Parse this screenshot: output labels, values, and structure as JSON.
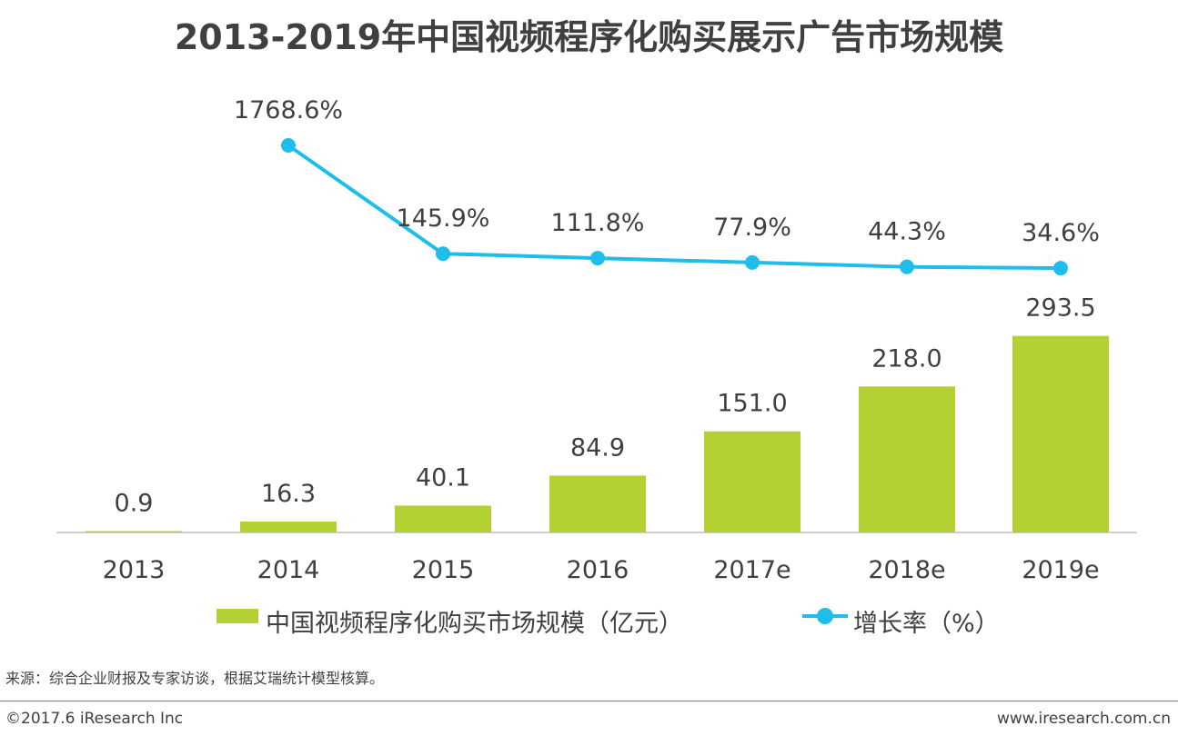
{
  "title": "2013-2019年中国视频程序化购买展示广告市场规模",
  "chart_data": {
    "type": "bar+line",
    "categories": [
      "2013",
      "2014",
      "2015",
      "2016",
      "2017e",
      "2018e",
      "2019e"
    ],
    "series": [
      {
        "name": "中国视频程序化购买市场规模（亿元）",
        "type": "bar",
        "values": [
          0.9,
          16.3,
          40.1,
          84.9,
          151.0,
          218.0,
          293.5
        ],
        "labels": [
          "0.9",
          "16.3",
          "40.1",
          "84.9",
          "151.0",
          "218.0",
          "293.5"
        ]
      },
      {
        "name": "增长率（%）",
        "type": "line",
        "values": [
          null,
          1768.6,
          145.9,
          111.8,
          77.9,
          44.3,
          34.6
        ],
        "labels": [
          "",
          "1768.6%",
          "145.9%",
          "111.8%",
          "77.9%",
          "44.3%",
          "34.6%"
        ]
      }
    ],
    "legend": {
      "bar_label": "中国视频程序化购买市场规模（亿元）",
      "line_label": "增长率（%）",
      "placement": "bottom"
    },
    "colors": {
      "bar": "#b3d133",
      "line": "#1fbdea",
      "axis": "#bfbfbf",
      "text": "#404040"
    }
  },
  "source": "来源：综合企业财报及专家访谈，根据艾瑞统计模型核算。",
  "copyright": "©2017.6 iResearch Inc",
  "website": "www.iresearch.com.cn"
}
